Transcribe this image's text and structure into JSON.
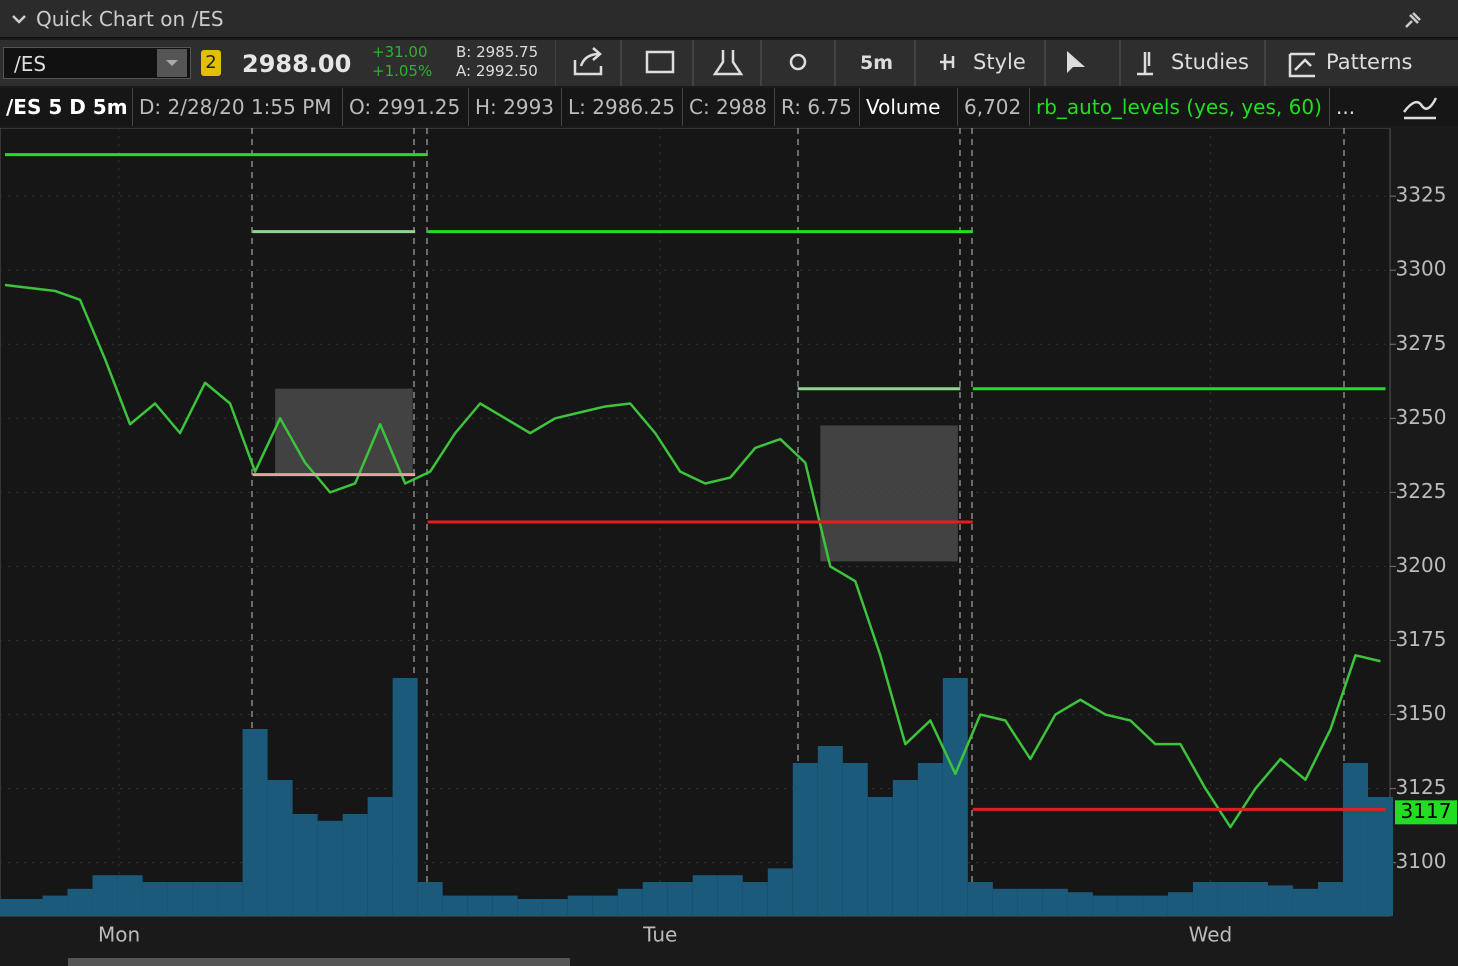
{
  "header": {
    "title": "Quick Chart on /ES"
  },
  "toolbar": {
    "symbol": "/ES",
    "link": "2",
    "last": "2988.00",
    "change": "+31.00",
    "change_pct": "+1.05%",
    "bid": "B: 2985.75",
    "ask": "A: 2992.50",
    "interval": "5m",
    "style": "Style",
    "studies": "Studies",
    "patterns": "Patterns"
  },
  "info": {
    "label": "/ES 5 D 5m",
    "date": "D: 2/28/20 1:55 PM",
    "open": "O: 2991.25",
    "high": "H: 2993",
    "low": "L: 2986.25",
    "close": "C: 2988",
    "range": "R: 6.75",
    "volume_label": "Volume",
    "volume": "6,702",
    "study": "rb_auto_levels (yes, yes, 60)",
    "more": "..."
  },
  "chart_data": {
    "type": "line",
    "x": [
      0,
      1,
      2,
      3,
      4,
      5,
      6,
      7,
      8,
      9,
      10,
      11,
      12,
      13,
      14,
      15,
      16,
      17,
      18,
      19,
      20,
      21,
      22,
      23,
      24,
      25,
      26,
      27,
      28,
      29,
      30,
      31,
      32,
      33,
      34,
      35,
      36,
      37,
      38,
      39,
      40,
      41,
      42,
      43,
      44,
      45,
      46,
      47,
      48,
      49,
      50,
      51,
      52,
      53,
      54,
      55
    ],
    "values": [
      3295,
      3294,
      3293,
      3290,
      3270,
      3248,
      3255,
      3245,
      3262,
      3255,
      3232,
      3250,
      3235,
      3225,
      3228,
      3248,
      3228,
      3232,
      3245,
      3255,
      3250,
      3245,
      3250,
      3252,
      3254,
      3255,
      3245,
      3232,
      3228,
      3230,
      3240,
      3243,
      3235,
      3200,
      3195,
      3170,
      3140,
      3148,
      3130,
      3150,
      3148,
      3135,
      3150,
      3155,
      3150,
      3148,
      3140,
      3140,
      3125,
      3112,
      3125,
      3135,
      3128,
      3145,
      3170,
      3168
    ],
    "color": "#3cc43c",
    "volume": {
      "color": "#1b5a7a",
      "ylim": [
        0,
        100
      ],
      "values": [
        5,
        5,
        6,
        8,
        12,
        12,
        10,
        10,
        10,
        10,
        55,
        40,
        30,
        28,
        30,
        35,
        70,
        10,
        6,
        6,
        6,
        5,
        5,
        6,
        6,
        8,
        10,
        10,
        12,
        12,
        10,
        14,
        45,
        50,
        45,
        35,
        40,
        45,
        70,
        10,
        8,
        8,
        8,
        7,
        6,
        6,
        6,
        7,
        10,
        10,
        10,
        9,
        8,
        10,
        45,
        35
      ]
    },
    "levels": [
      {
        "value": 3339,
        "start": 0,
        "end": 16.9,
        "color": "#22dd22"
      },
      {
        "value": 3313,
        "start": 9.9,
        "end": 16.4,
        "color": "#8fd48f"
      },
      {
        "value": 3313,
        "start": 16.9,
        "end": 38.7,
        "color": "#22dd22"
      },
      {
        "value": 3260,
        "start": 31.7,
        "end": 38.2,
        "color": "#8fd48f"
      },
      {
        "value": 3260,
        "start": 38.7,
        "end": 55.2,
        "color": "#22dd22"
      },
      {
        "value": 3231,
        "start": 9.9,
        "end": 16.4,
        "color": "#e8a0a0"
      },
      {
        "value": 3215,
        "start": 16.9,
        "end": 38.7,
        "color": "#e02020"
      },
      {
        "value": 3118,
        "start": 38.7,
        "end": 55.2,
        "color": "#e02020"
      }
    ],
    "boxes": [
      {
        "top": 3260,
        "bottom": 3230.5,
        "start": 10.8,
        "end": 16.3
      },
      {
        "top": 3247.6,
        "bottom": 3201.7,
        "start": 32.6,
        "end": 38.1
      }
    ],
    "price_marker": 3117,
    "ylim": [
      3082,
      3348
    ],
    "yticks": [
      3100,
      3125,
      3150,
      3175,
      3200,
      3225,
      3250,
      3275,
      3300,
      3325
    ],
    "xlim": [
      0,
      55.3
    ],
    "xticks": [
      {
        "value": 4.56,
        "label": "Mon"
      },
      {
        "value": 26.2,
        "label": "Tue"
      },
      {
        "value": 48.2,
        "label": "Wed"
      }
    ],
    "grid": true
  }
}
